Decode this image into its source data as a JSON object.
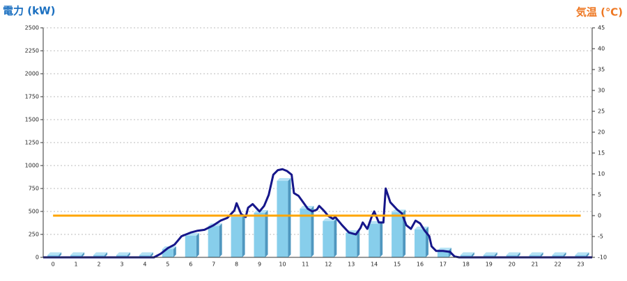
{
  "chart_data": {
    "type": "combo",
    "y_label": "電力 (kW)",
    "y2_label": "気温 (℃)",
    "categories": [
      "0",
      "1",
      "2",
      "3",
      "4",
      "5",
      "6",
      "7",
      "8",
      "9",
      "10",
      "11",
      "12",
      "13",
      "14",
      "15",
      "16",
      "17",
      "18",
      "19",
      "20",
      "21",
      "22",
      "23"
    ],
    "xlim": [
      -0.43,
      23.5
    ],
    "ylim": [
      0,
      2500
    ],
    "yticks": [
      0,
      250,
      500,
      750,
      1000,
      1250,
      1500,
      1750,
      2000,
      2250,
      2500
    ],
    "y2lim": [
      -10,
      45
    ],
    "y2ticks": [
      -10,
      -5,
      0,
      5,
      10,
      15,
      20,
      25,
      30,
      35,
      40,
      45
    ],
    "grid": true,
    "series": [
      {
        "type": "bar",
        "color": "#87ceeb",
        "values": [
          25,
          25,
          25,
          25,
          25,
          90,
          235,
          340,
          440,
          485,
          833,
          530,
          395,
          265,
          365,
          490,
          305,
          75,
          25,
          25,
          25,
          25,
          25,
          25
        ]
      },
      {
        "type": "line",
        "color": "#16168a",
        "x": [
          -0.43,
          4.4,
          4.7,
          5.0,
          5.3,
          5.6,
          6.0,
          6.3,
          6.6,
          7.0,
          7.3,
          7.6,
          7.9,
          8.0,
          8.2,
          8.4,
          8.5,
          8.7,
          9.0,
          9.2,
          9.4,
          9.6,
          9.8,
          10.0,
          10.2,
          10.4,
          10.5,
          10.7,
          10.9,
          11.1,
          11.3,
          11.5,
          11.6,
          11.8,
          12.0,
          12.2,
          12.3,
          12.6,
          12.9,
          13.2,
          13.4,
          13.5,
          13.7,
          13.9,
          14.0,
          14.2,
          14.4,
          14.5,
          14.7,
          15.0,
          15.2,
          15.4,
          15.6,
          15.8,
          16.0,
          16.2,
          16.4,
          16.5,
          16.7,
          17.0,
          17.3,
          17.5,
          17.7,
          23.5
        ],
        "values": [
          0,
          0,
          40,
          100,
          140,
          230,
          270,
          290,
          300,
          350,
          400,
          430,
          510,
          590,
          470,
          440,
          540,
          580,
          500,
          560,
          680,
          900,
          950,
          960,
          940,
          900,
          700,
          670,
          600,
          530,
          500,
          520,
          560,
          510,
          450,
          420,
          440,
          350,
          270,
          250,
          320,
          380,
          310,
          450,
          500,
          380,
          380,
          750,
          600,
          520,
          480,
          350,
          310,
          400,
          370,
          290,
          230,
          120,
          70,
          70,
          60,
          10,
          0,
          0
        ]
      },
      {
        "type": "line",
        "axis": "y2",
        "color": "#ffa500",
        "values": [
          0,
          0,
          0,
          0,
          0,
          0,
          0,
          0,
          0,
          0,
          0,
          0,
          0,
          0,
          0,
          0,
          0,
          0,
          0,
          0,
          0,
          0,
          0,
          0
        ]
      }
    ]
  }
}
